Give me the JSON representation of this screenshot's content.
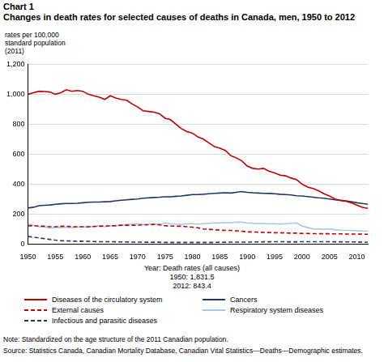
{
  "chart_data": {
    "type": "line",
    "title": "Chart 1",
    "subtitle": "Changes in death rates for selected causes of deaths in Canada, men, 1950 to 2012",
    "y_label": [
      "rates per 100,000",
      "standard population",
      "(2011)"
    ],
    "x_label": "Year: Death rates (all causes)",
    "annotations": [
      "1950: 1,831.5",
      "2012: 843.4"
    ],
    "note": "Note: Standardized on the age structure of the 2011 Canadian population.",
    "source": "Source: Statistics Canada, Canadian Mortality Database, Canadian Vital Statistics—Deaths—Demographic estimates.",
    "x": [
      1950,
      1951,
      1952,
      1953,
      1954,
      1955,
      1956,
      1957,
      1958,
      1959,
      1960,
      1961,
      1962,
      1963,
      1964,
      1965,
      1966,
      1967,
      1968,
      1969,
      1970,
      1971,
      1972,
      1973,
      1974,
      1975,
      1976,
      1977,
      1978,
      1979,
      1980,
      1981,
      1982,
      1983,
      1984,
      1985,
      1986,
      1987,
      1988,
      1989,
      1990,
      1991,
      1992,
      1993,
      1994,
      1995,
      1996,
      1997,
      1998,
      1999,
      2000,
      2001,
      2002,
      2003,
      2004,
      2005,
      2006,
      2007,
      2008,
      2009,
      2010,
      2011,
      2012
    ],
    "series": [
      {
        "name": "Diseases of the circulatory system",
        "color": "#c00000",
        "line_style": "solid",
        "values": [
          1000,
          1010,
          1020,
          1018,
          1015,
          1000,
          1010,
          1030,
          1020,
          1025,
          1020,
          1000,
          990,
          980,
          965,
          990,
          975,
          965,
          960,
          935,
          915,
          890,
          885,
          880,
          870,
          840,
          830,
          800,
          770,
          750,
          740,
          715,
          700,
          675,
          650,
          640,
          625,
          590,
          575,
          555,
          520,
          505,
          500,
          505,
          485,
          475,
          460,
          455,
          440,
          430,
          400,
          380,
          370,
          355,
          335,
          320,
          300,
          290,
          285,
          275,
          260,
          245,
          238
        ]
      },
      {
        "name": "Cancers",
        "color": "#1f3864",
        "line_style": "solid",
        "values": [
          240,
          245,
          255,
          258,
          260,
          265,
          268,
          270,
          270,
          272,
          275,
          278,
          280,
          280,
          282,
          283,
          288,
          292,
          295,
          298,
          300,
          305,
          308,
          310,
          312,
          315,
          315,
          318,
          320,
          325,
          330,
          330,
          332,
          335,
          338,
          340,
          342,
          340,
          345,
          350,
          345,
          342,
          340,
          338,
          337,
          335,
          332,
          330,
          327,
          322,
          320,
          316,
          312,
          308,
          305,
          300,
          295,
          292,
          288,
          282,
          275,
          270,
          265
        ]
      },
      {
        "name": "External causes",
        "color": "#c00000",
        "line_style": "dashed",
        "values": [
          122,
          120,
          120,
          118,
          115,
          115,
          118,
          118,
          115,
          115,
          115,
          115,
          116,
          118,
          120,
          120,
          122,
          125,
          125,
          125,
          125,
          127,
          128,
          130,
          128,
          122,
          120,
          118,
          118,
          115,
          112,
          108,
          100,
          98,
          95,
          92,
          90,
          90,
          88,
          85,
          80,
          80,
          78,
          77,
          76,
          75,
          74,
          73,
          72,
          72,
          70,
          70,
          69,
          69,
          68,
          68,
          67,
          67,
          66,
          66,
          66,
          65,
          65
        ]
      },
      {
        "name": "Respiratory system diseases",
        "color": "#a6c8e8",
        "line_style": "solid",
        "values": [
          135,
          125,
          115,
          112,
          105,
          110,
          110,
          112,
          108,
          112,
          115,
          112,
          118,
          120,
          115,
          120,
          122,
          125,
          130,
          132,
          135,
          130,
          132,
          135,
          130,
          140,
          135,
          132,
          130,
          135,
          135,
          132,
          135,
          138,
          140,
          140,
          142,
          142,
          145,
          145,
          140,
          138,
          137,
          135,
          135,
          135,
          133,
          135,
          138,
          140,
          120,
          110,
          100,
          100,
          98,
          100,
          95,
          92,
          90,
          90,
          88,
          86,
          85
        ]
      },
      {
        "name": "Infectious and parasitic diseases",
        "color": "#1f3864",
        "line_style": "dashed",
        "values": [
          50,
          45,
          40,
          35,
          30,
          25,
          22,
          20,
          19,
          18,
          18,
          17,
          16,
          15,
          15,
          15,
          14,
          13,
          13,
          12,
          12,
          12,
          11,
          11,
          11,
          10,
          10,
          10,
          10,
          10,
          10,
          10,
          10,
          10,
          10,
          11,
          11,
          12,
          12,
          12,
          12,
          13,
          13,
          14,
          14,
          15,
          15,
          14,
          14,
          14,
          15,
          15,
          15,
          15,
          15,
          15,
          14,
          14,
          13,
          13,
          13,
          12,
          12
        ]
      }
    ],
    "xlim": [
      1950,
      2012
    ],
    "xticks": [
      1950,
      1955,
      1960,
      1965,
      1970,
      1975,
      1980,
      1985,
      1990,
      1995,
      2000,
      2005,
      2010
    ],
    "ylim": [
      0,
      1200
    ],
    "yticks": [
      0,
      200,
      400,
      600,
      800,
      {
        "value": 1000,
        "label": "1,000"
      },
      {
        "value": 1200,
        "label": "1,200"
      }
    ],
    "grid": "y",
    "legend": "bottom"
  }
}
